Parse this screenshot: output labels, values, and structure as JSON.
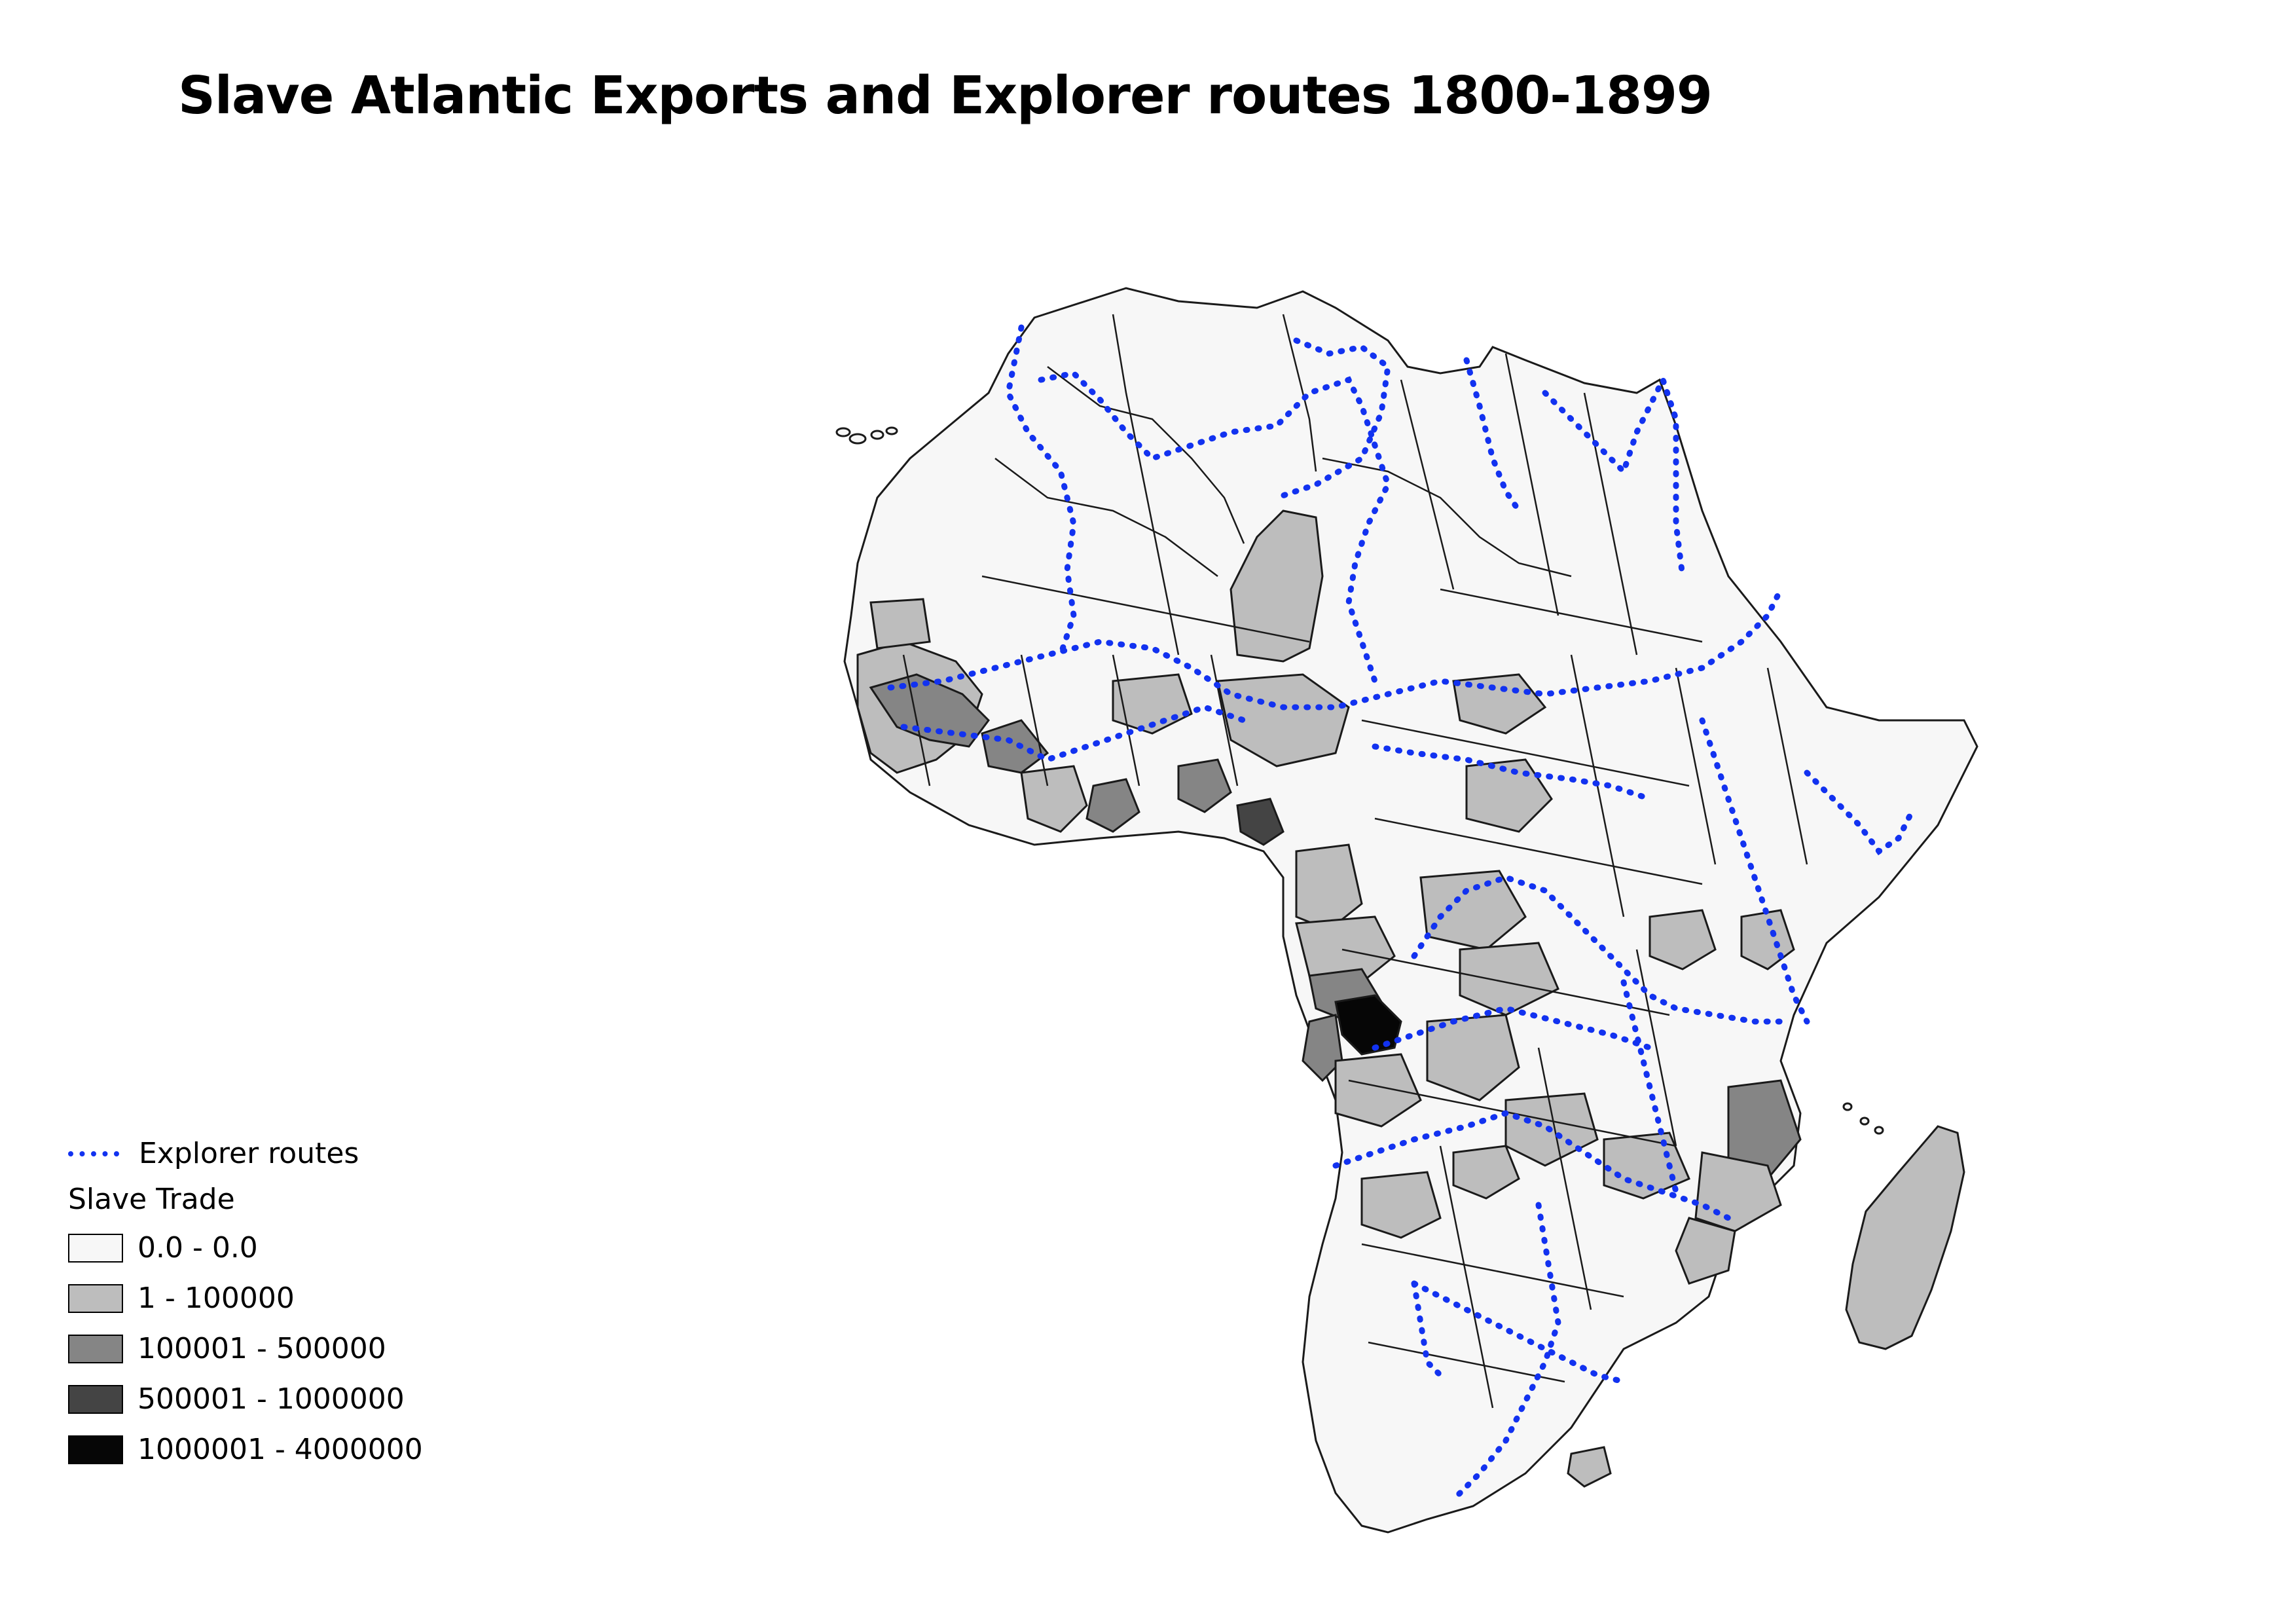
{
  "title": "Slave Atlantic Exports and Explorer routes 1800-1899",
  "colors": {
    "route": "#1232f0",
    "outline": "#1a1a1a",
    "class_0": "#f7f7f7",
    "class_1": "#bdbdbd",
    "class_2": "#858585",
    "class_3": "#444444",
    "class_4": "#060606"
  },
  "legend": {
    "routes_label": "Explorer routes",
    "heading": "Slave Trade",
    "classes": [
      {
        "label": "0.0 - 0.0",
        "color": "#f7f7f7"
      },
      {
        "label": "1 - 100000",
        "color": "#bdbdbd"
      },
      {
        "label": "100001 - 500000",
        "color": "#858585"
      },
      {
        "label": "500001 - 1000000",
        "color": "#444444"
      },
      {
        "label": "1000001 - 4000000",
        "color": "#060606"
      }
    ]
  }
}
